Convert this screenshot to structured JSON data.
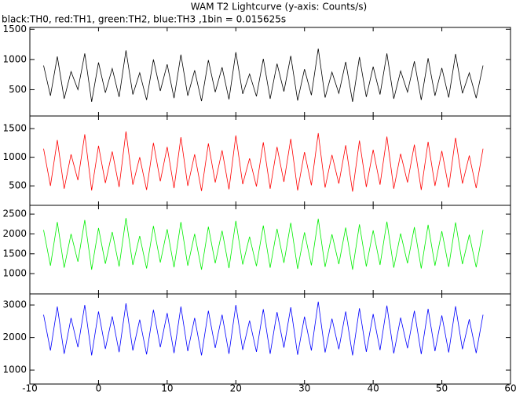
{
  "chart_data": {
    "type": "line",
    "title": "WAM T2 Lightcurve (y-axis: Counts/s)",
    "subtitle": "black:TH0, red:TH1, green:TH2, blue:TH3 ,1bin = 0.015625s",
    "x": [
      -8,
      -7,
      -6,
      -5,
      -4,
      -3,
      -2,
      -1,
      0,
      1,
      2,
      3,
      4,
      5,
      6,
      7,
      8,
      9,
      10,
      11,
      12,
      13,
      14,
      15,
      16,
      17,
      18,
      19,
      20,
      21,
      22,
      23,
      24,
      25,
      26,
      27,
      28,
      29,
      30,
      31,
      32,
      33,
      34,
      35,
      36,
      37,
      38,
      39,
      40,
      41,
      42,
      43,
      44,
      45,
      46,
      47,
      48,
      49,
      50,
      51,
      52,
      53,
      54,
      55,
      56
    ],
    "xlim": [
      -10,
      60
    ],
    "xticks": [
      -10,
      0,
      10,
      20,
      30,
      40,
      50,
      60
    ],
    "series": [
      {
        "color": "#000000",
        "ylim": [
          65,
          1530
        ],
        "yticks": [
          500,
          1000,
          1500
        ],
        "values": [
          900,
          400,
          1050,
          350,
          800,
          500,
          1100,
          300,
          950,
          450,
          850,
          380,
          1150,
          420,
          780,
          330,
          1000,
          480,
          920,
          360,
          1080,
          400,
          820,
          310,
          990,
          460,
          870,
          340,
          1120,
          430,
          760,
          390,
          1010,
          350,
          930,
          470,
          1060,
          320,
          840,
          410,
          1180,
          370,
          790,
          440,
          960,
          300,
          1040,
          380,
          880,
          420,
          1100,
          350,
          810,
          460,
          970,
          330,
          1020,
          400,
          860,
          370,
          1090,
          440,
          780,
          360,
          900
        ]
      },
      {
        "color": "#ff0000",
        "ylim": [
          160,
          1720
        ],
        "yticks": [
          500,
          1000,
          1500
        ],
        "values": [
          1150,
          500,
          1300,
          450,
          1050,
          600,
          1400,
          420,
          1200,
          550,
          1100,
          480,
          1450,
          520,
          1000,
          430,
          1250,
          580,
          1180,
          460,
          1350,
          500,
          1050,
          410,
          1240,
          560,
          1120,
          440,
          1380,
          530,
          980,
          490,
          1260,
          450,
          1180,
          570,
          1320,
          420,
          1090,
          510,
          1420,
          470,
          1040,
          540,
          1210,
          400,
          1290,
          480,
          1130,
          520,
          1360,
          450,
          1060,
          560,
          1220,
          430,
          1270,
          500,
          1110,
          470,
          1340,
          540,
          1030,
          460,
          1150
        ]
      },
      {
        "color": "#00ee00",
        "ylim": [
          490,
          2720
        ],
        "yticks": [
          1000,
          1500,
          2000,
          2500
        ],
        "values": [
          2100,
          1200,
          2300,
          1150,
          2000,
          1300,
          2350,
          1100,
          2150,
          1250,
          2050,
          1180,
          2400,
          1220,
          1950,
          1130,
          2200,
          1280,
          2120,
          1160,
          2300,
          1200,
          2000,
          1100,
          2180,
          1260,
          2080,
          1140,
          2330,
          1230,
          1930,
          1190,
          2210,
          1150,
          2130,
          1270,
          2280,
          1120,
          2040,
          1210,
          2380,
          1170,
          1990,
          1240,
          2160,
          1100,
          2240,
          1180,
          2090,
          1220,
          2310,
          1150,
          2010,
          1260,
          2170,
          1130,
          2230,
          1200,
          2070,
          1170,
          2290,
          1240,
          1980,
          1160,
          2100
        ]
      },
      {
        "color": "#0000ff",
        "ylim": [
          570,
          3340
        ],
        "yticks": [
          1000,
          2000,
          3000
        ],
        "values": [
          2700,
          1600,
          2950,
          1500,
          2600,
          1700,
          3000,
          1450,
          2800,
          1650,
          2650,
          1550,
          3050,
          1600,
          2550,
          1480,
          2850,
          1700,
          2750,
          1520,
          2950,
          1580,
          2600,
          1450,
          2820,
          1680,
          2700,
          1500,
          3000,
          1620,
          2520,
          1560,
          2870,
          1500,
          2780,
          1690,
          2930,
          1470,
          2640,
          1600,
          3100,
          1540,
          2580,
          1640,
          2800,
          1450,
          2900,
          1560,
          2720,
          1610,
          2980,
          1510,
          2610,
          1670,
          2820,
          1490,
          2880,
          1580,
          2680,
          1540,
          2960,
          1640,
          2560,
          1520,
          2700
        ]
      }
    ]
  }
}
